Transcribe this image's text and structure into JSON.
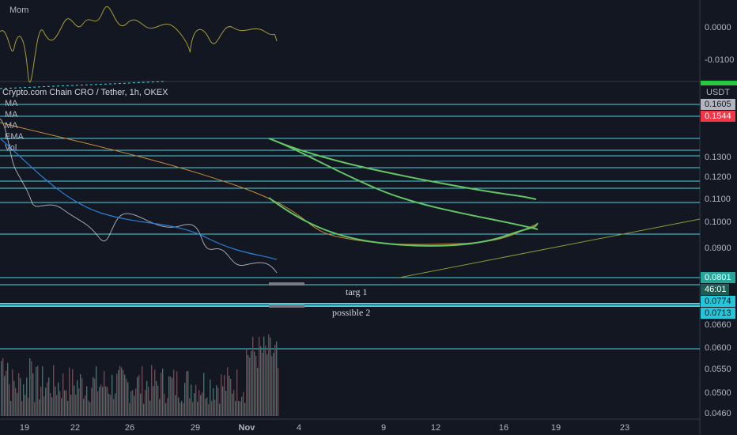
{
  "indicator_panel": {
    "label": "Mom",
    "axis_labels": [
      "0.0000",
      "-0.0100"
    ]
  },
  "main_panel": {
    "symbol": "Crypto.com Chain CRO / Tether, 1h, OKEX",
    "studies": [
      "MA",
      "MA",
      "MA",
      "EMA",
      "Vol"
    ],
    "currency": "USDT",
    "axis_labels": [
      "0.1605",
      "0.1544",
      "0.1300",
      "0.1200",
      "0.1100",
      "0.1000",
      "0.0900",
      "0.0801",
      "46:01",
      "0.0774",
      "0.0713",
      "0.0660",
      "0.0600",
      "0.0550",
      "0.0500",
      "0.0460"
    ],
    "annotations": [
      "targ 1",
      "possible 2"
    ]
  },
  "time_axis": [
    "19",
    "22",
    "26",
    "29",
    "Nov",
    "4",
    "9",
    "12",
    "16",
    "19",
    "23"
  ]
}
